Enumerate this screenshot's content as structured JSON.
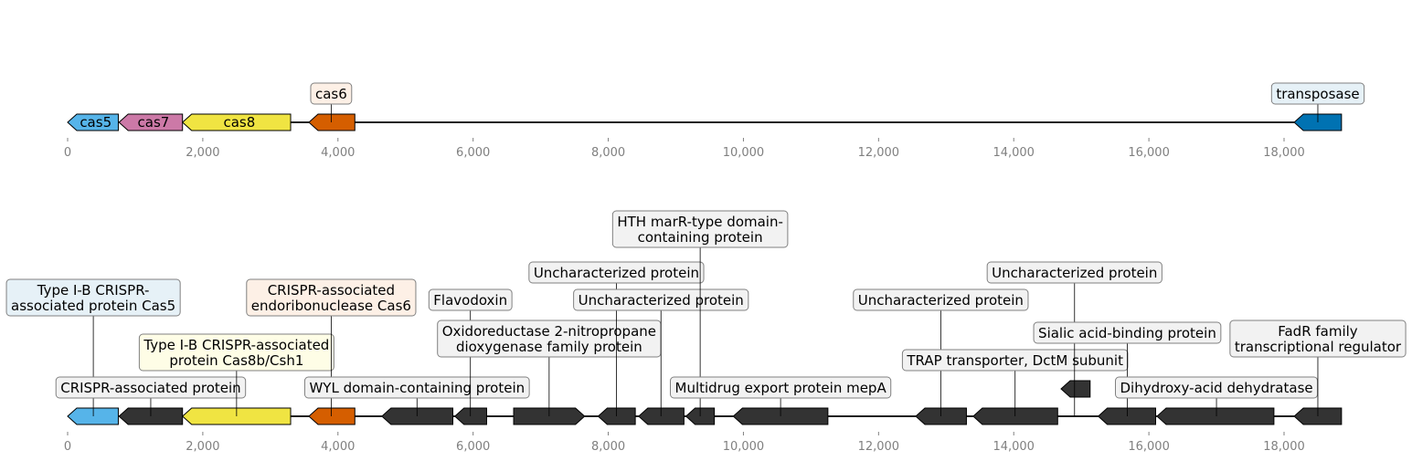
{
  "tracks": [
    {
      "id": "top",
      "ticks": [
        0,
        2000,
        4000,
        6000,
        8000,
        10000,
        12000,
        14000,
        16000,
        18000
      ],
      "tick_labels": [
        "0",
        "2,000",
        "4,000",
        "6,000",
        "8,000",
        "10,000",
        "12,000",
        "14,000",
        "16,000",
        "18,000"
      ],
      "genes": [
        {
          "start": 0,
          "end": 750,
          "strand": -1,
          "color": "#56b4e9",
          "label": "cas5"
        },
        {
          "start": 760,
          "end": 1700,
          "strand": -1,
          "color": "#cc79a7",
          "label": "cas7"
        },
        {
          "start": 1700,
          "end": 3300,
          "strand": -1,
          "color": "#f0e442",
          "label": "cas8"
        },
        {
          "start": 3570,
          "end": 4250,
          "strand": -1,
          "color": "#d55e00",
          "label": ""
        },
        {
          "start": 18150,
          "end": 18850,
          "strand": -1,
          "color": "#0072b2",
          "label": ""
        }
      ],
      "annotations": [
        {
          "x": 3900,
          "text": "cas6",
          "bg": "#fdf0e6"
        },
        {
          "x": 18500,
          "text": "transposase",
          "bg": "#e6f1f7"
        }
      ]
    },
    {
      "id": "bottom",
      "ticks": [
        0,
        2000,
        4000,
        6000,
        8000,
        10000,
        12000,
        14000,
        16000,
        18000
      ],
      "tick_labels": [
        "0",
        "2,000",
        "4,000",
        "6,000",
        "8,000",
        "10,000",
        "12,000",
        "14,000",
        "16,000",
        "18,000"
      ],
      "genes": [
        {
          "start": 0,
          "end": 750,
          "strand": -1,
          "color": "#56b4e9"
        },
        {
          "start": 760,
          "end": 1700,
          "strand": -1,
          "color": "#333333"
        },
        {
          "start": 1700,
          "end": 3300,
          "strand": -1,
          "color": "#f0e442"
        },
        {
          "start": 3570,
          "end": 4250,
          "strand": -1,
          "color": "#d55e00"
        },
        {
          "start": 4650,
          "end": 5700,
          "strand": -1,
          "color": "#333333"
        },
        {
          "start": 5730,
          "end": 6200,
          "strand": -1,
          "color": "#333333"
        },
        {
          "start": 6600,
          "end": 7650,
          "strand": 1,
          "color": "#333333"
        },
        {
          "start": 7850,
          "end": 8400,
          "strand": -1,
          "color": "#333333"
        },
        {
          "start": 8450,
          "end": 9120,
          "strand": -1,
          "color": "#333333"
        },
        {
          "start": 9150,
          "end": 9570,
          "strand": -1,
          "color": "#333333"
        },
        {
          "start": 9850,
          "end": 11250,
          "strand": -1,
          "color": "#333333"
        },
        {
          "start": 12550,
          "end": 13300,
          "strand": -1,
          "color": "#333333"
        },
        {
          "start": 13400,
          "end": 14650,
          "strand": -1,
          "color": "#333333"
        },
        {
          "start": 14700,
          "end": 15130,
          "strand": -1,
          "color": "#333333",
          "offset": true
        },
        {
          "start": 15250,
          "end": 16100,
          "strand": -1,
          "color": "#333333"
        },
        {
          "start": 16120,
          "end": 17850,
          "strand": -1,
          "color": "#333333"
        },
        {
          "start": 18150,
          "end": 18850,
          "strand": -1,
          "color": "#333333"
        }
      ],
      "annotations": [
        {
          "x": 380,
          "level": 3,
          "text": [
            "Type I-B CRISPR-",
            "associated protein Cas5"
          ],
          "bg": "#e6f1f7"
        },
        {
          "x": 1230,
          "level": 0,
          "text": [
            "CRISPR-associated protein"
          ],
          "bg": "#f2f2f2"
        },
        {
          "x": 2500,
          "level": 1,
          "text": [
            "Type I-B CRISPR-associated",
            "protein Cas8b/Csh1"
          ],
          "bg": "#fefde6"
        },
        {
          "x": 3900,
          "level": 3,
          "text": [
            "CRISPR-associated",
            "endoribonuclease Cas6"
          ],
          "bg": "#fdf0e6"
        },
        {
          "x": 5170,
          "level": 0,
          "text": [
            "WYL domain-containing protein"
          ],
          "bg": "#f2f2f2"
        },
        {
          "x": 5960,
          "level": 3.2,
          "text": [
            "Flavodoxin"
          ],
          "bg": "#f2f2f2"
        },
        {
          "x": 7125,
          "level": 1.5,
          "text": [
            "Oxidoreductase 2-nitropropane",
            "dioxygenase family protein"
          ],
          "bg": "#f2f2f2"
        },
        {
          "x": 8120,
          "level": 4.2,
          "text": [
            "Uncharacterized protein"
          ],
          "bg": "#f2f2f2"
        },
        {
          "x": 8780,
          "level": 3.2,
          "text": [
            "Uncharacterized protein"
          ],
          "bg": "#f2f2f2"
        },
        {
          "x": 9360,
          "level": 5.5,
          "text": [
            "HTH marR-type domain-",
            "containing protein"
          ],
          "bg": "#f2f2f2"
        },
        {
          "x": 10550,
          "level": 0,
          "text": [
            "Multidrug export protein mepA"
          ],
          "bg": "#f2f2f2"
        },
        {
          "x": 12920,
          "level": 3.2,
          "text": [
            "Uncharacterized protein"
          ],
          "bg": "#f2f2f2"
        },
        {
          "x": 14020,
          "level": 1.0,
          "text": [
            "TRAP transporter, DctM subunit"
          ],
          "bg": "#f2f2f2"
        },
        {
          "x": 14900,
          "level": 4.2,
          "text": [
            "Uncharacterized protein"
          ],
          "bg": "#f2f2f2"
        },
        {
          "x": 15680,
          "level": 2.0,
          "text": [
            "Sialic acid-binding protein"
          ],
          "bg": "#f2f2f2"
        },
        {
          "x": 17000,
          "level": 0,
          "text": [
            "Dihydroxy-acid dehydratase"
          ],
          "bg": "#f2f2f2"
        },
        {
          "x": 18500,
          "level": 1.5,
          "text": [
            "FadR family",
            "transcriptional regulator"
          ],
          "bg": "#f2f2f2"
        }
      ]
    }
  ]
}
